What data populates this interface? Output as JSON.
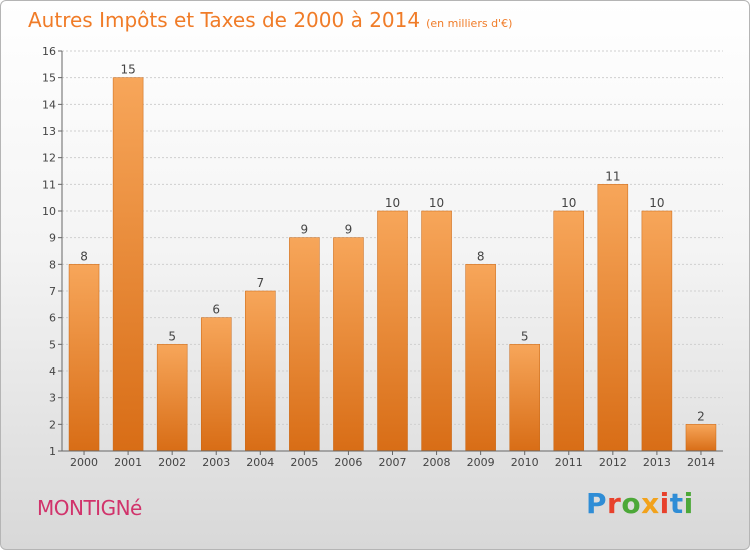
{
  "header": {
    "title": "Autres Impôts et Taxes de 2000 à 2014",
    "unit_note": "(en milliers d'€)"
  },
  "footer": {
    "city": "MONTIGNé",
    "brand_letters": [
      {
        "ch": "P",
        "color": "#2f8dd6"
      },
      {
        "ch": "r",
        "color": "#e8412c"
      },
      {
        "ch": "o",
        "color": "#4ca838"
      },
      {
        "ch": "x",
        "color": "#f2a21b"
      },
      {
        "ch": "i",
        "color": "#e8412c"
      },
      {
        "ch": "t",
        "color": "#2f8dd6"
      },
      {
        "ch": "i",
        "color": "#4ca838"
      }
    ]
  },
  "colors": {
    "bar_top": "#f7a65a",
    "bar_bottom": "#d86d16",
    "title": "#f07c28",
    "city": "#d1336b",
    "grid": "#cfcfcf"
  },
  "chart_data": {
    "type": "bar",
    "categories": [
      "2000",
      "2001",
      "2002",
      "2003",
      "2004",
      "2005",
      "2006",
      "2007",
      "2008",
      "2009",
      "2010",
      "2011",
      "2012",
      "2013",
      "2014"
    ],
    "values": [
      8,
      15,
      5,
      6,
      7,
      9,
      9,
      10,
      10,
      8,
      5,
      10,
      11,
      10,
      2
    ],
    "ylim": [
      1,
      16
    ],
    "yticks": [
      1,
      2,
      3,
      4,
      5,
      6,
      7,
      8,
      9,
      10,
      11,
      12,
      13,
      14,
      15,
      16
    ],
    "grid": true,
    "legend": "none"
  }
}
